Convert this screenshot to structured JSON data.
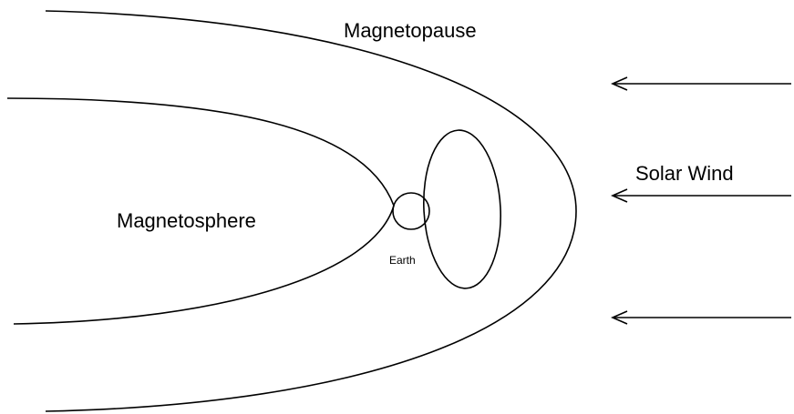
{
  "labels": {
    "magnetopause": "Magnetopause",
    "solar_wind": "Solar Wind",
    "magnetosphere": "Magnetosphere",
    "earth": "Earth"
  }
}
